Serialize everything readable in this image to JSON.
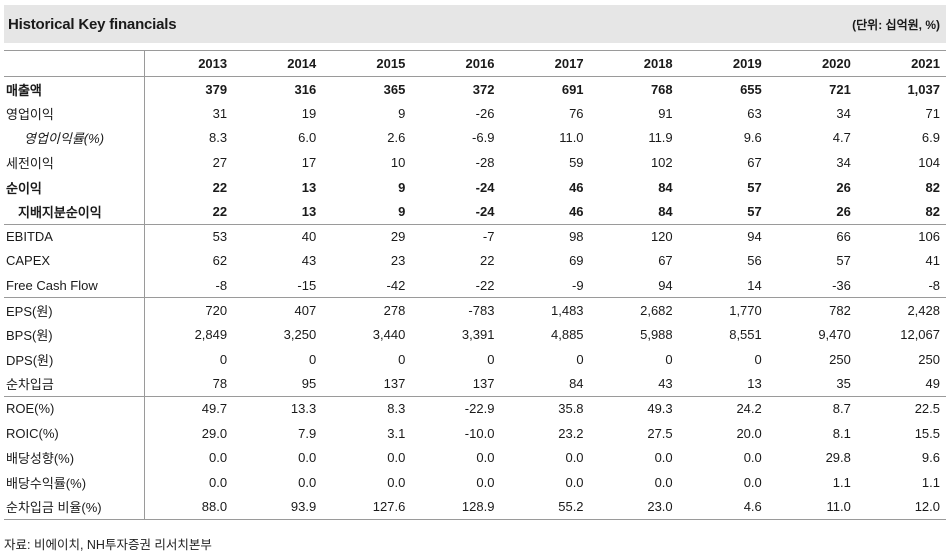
{
  "header": {
    "title": "Historical Key financials",
    "unit": "(단위: 십억원, %)"
  },
  "table": {
    "years": [
      "2013",
      "2014",
      "2015",
      "2016",
      "2017",
      "2018",
      "2019",
      "2020",
      "2021"
    ],
    "rows": [
      {
        "label": "매출액",
        "values": [
          "379",
          "316",
          "365",
          "372",
          "691",
          "768",
          "655",
          "721",
          "1,037"
        ]
      },
      {
        "label": "영업이익",
        "values": [
          "31",
          "19",
          "9",
          "-26",
          "76",
          "91",
          "63",
          "34",
          "71"
        ]
      },
      {
        "label": "영업이익률(%)",
        "values": [
          "8.3",
          "6.0",
          "2.6",
          "-6.9",
          "11.0",
          "11.9",
          "9.6",
          "4.7",
          "6.9"
        ]
      },
      {
        "label": "세전이익",
        "values": [
          "27",
          "17",
          "10",
          "-28",
          "59",
          "102",
          "67",
          "34",
          "104"
        ]
      },
      {
        "label": "순이익",
        "values": [
          "22",
          "13",
          "9",
          "-24",
          "46",
          "84",
          "57",
          "26",
          "82"
        ]
      },
      {
        "label": "지배지분순이익",
        "values": [
          "22",
          "13",
          "9",
          "-24",
          "46",
          "84",
          "57",
          "26",
          "82"
        ]
      },
      {
        "label": "EBITDA",
        "values": [
          "53",
          "40",
          "29",
          "-7",
          "98",
          "120",
          "94",
          "66",
          "106"
        ]
      },
      {
        "label": "CAPEX",
        "values": [
          "62",
          "43",
          "23",
          "22",
          "69",
          "67",
          "56",
          "57",
          "41"
        ]
      },
      {
        "label": "Free Cash Flow",
        "values": [
          "-8",
          "-15",
          "-42",
          "-22",
          "-9",
          "94",
          "14",
          "-36",
          "-8"
        ]
      },
      {
        "label": "EPS(원)",
        "values": [
          "720",
          "407",
          "278",
          "-783",
          "1,483",
          "2,682",
          "1,770",
          "782",
          "2,428"
        ]
      },
      {
        "label": "BPS(원)",
        "values": [
          "2,849",
          "3,250",
          "3,440",
          "3,391",
          "4,885",
          "5,988",
          "8,551",
          "9,470",
          "12,067"
        ]
      },
      {
        "label": "DPS(원)",
        "values": [
          "0",
          "0",
          "0",
          "0",
          "0",
          "0",
          "0",
          "250",
          "250"
        ]
      },
      {
        "label": "순차입금",
        "values": [
          "78",
          "95",
          "137",
          "137",
          "84",
          "43",
          "13",
          "35",
          "49"
        ]
      },
      {
        "label": "ROE(%)",
        "values": [
          "49.7",
          "13.3",
          "8.3",
          "-22.9",
          "35.8",
          "49.3",
          "24.2",
          "8.7",
          "22.5"
        ]
      },
      {
        "label": "ROIC(%)",
        "values": [
          "29.0",
          "7.9",
          "3.1",
          "-10.0",
          "23.2",
          "27.5",
          "20.0",
          "8.1",
          "15.5"
        ]
      },
      {
        "label": "배당성향(%)",
        "values": [
          "0.0",
          "0.0",
          "0.0",
          "0.0",
          "0.0",
          "0.0",
          "0.0",
          "29.8",
          "9.6"
        ]
      },
      {
        "label": "배당수익률(%)",
        "values": [
          "0.0",
          "0.0",
          "0.0",
          "0.0",
          "0.0",
          "0.0",
          "0.0",
          "1.1",
          "1.1"
        ]
      },
      {
        "label": "순차입금 비율(%)",
        "values": [
          "88.0",
          "93.9",
          "127.6",
          "128.9",
          "55.2",
          "23.0",
          "4.6",
          "11.0",
          "12.0"
        ]
      }
    ]
  },
  "footer": {
    "source": "자료: 비에이치, NH투자증권 리서치본부"
  }
}
